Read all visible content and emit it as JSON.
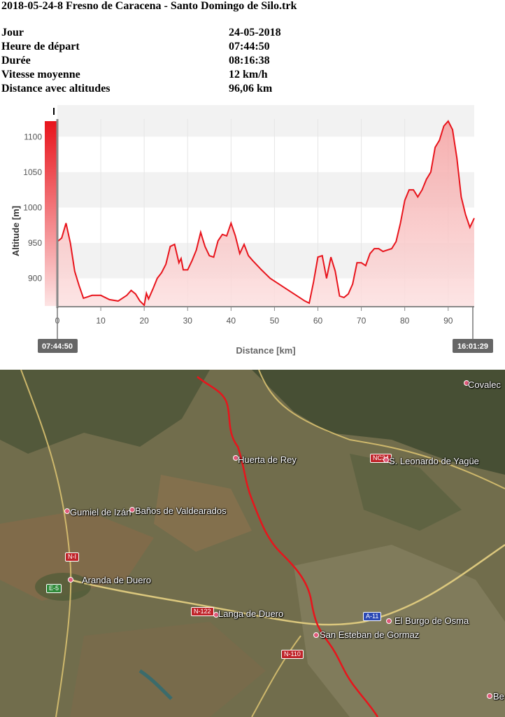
{
  "title": "2018-05-24-8 Fresno de Caracena - Santo Domingo de Silo.trk",
  "info": [
    {
      "label": "Jour",
      "value": "24-05-2018"
    },
    {
      "label": "Heure de départ",
      "value": "07:44:50"
    },
    {
      "label": "Durée",
      "value": "08:16:38"
    },
    {
      "label": "Vitesse moyenne",
      "value": "12 km/h"
    },
    {
      "label": "Distance avec altitudes",
      "value": "96,06 km"
    }
  ],
  "chart_data": {
    "type": "area",
    "xlabel": "Distance [km]",
    "ylabel": "Altitude [m]",
    "xlim": [
      0,
      96
    ],
    "ylim": [
      860,
      1125
    ],
    "xticks": [
      0,
      10,
      20,
      30,
      40,
      50,
      60,
      70,
      80,
      90
    ],
    "yticks": [
      900,
      950,
      1000,
      1050,
      1100
    ],
    "grid": "horizontal bands",
    "start_time": "07:44:50",
    "end_time": "16:01:29",
    "colors": {
      "line": "#e8141c",
      "fill": "#f7b3b3"
    },
    "x": [
      0,
      1,
      2,
      3,
      4,
      5,
      6,
      8,
      10,
      12,
      14,
      16,
      17,
      18,
      19,
      20,
      20.5,
      21,
      22,
      23,
      24,
      25,
      26,
      27,
      28,
      28.5,
      29,
      30,
      31,
      32,
      33,
      34,
      35,
      36,
      37,
      38,
      39,
      40,
      41,
      42,
      43,
      44,
      45,
      47,
      49,
      51,
      53,
      55,
      57,
      58,
      59,
      60,
      61,
      62,
      63,
      64,
      65,
      66,
      67,
      68,
      69,
      70,
      71,
      72,
      73,
      74,
      75,
      76,
      77,
      78,
      79,
      80,
      81,
      82,
      83,
      84,
      85,
      86,
      87,
      88,
      89,
      90,
      91,
      92,
      93,
      94,
      95,
      96
    ],
    "y": [
      952,
      957,
      978,
      950,
      910,
      890,
      872,
      876,
      876,
      870,
      868,
      876,
      883,
      878,
      868,
      862,
      879,
      871,
      885,
      900,
      908,
      920,
      945,
      948,
      922,
      928,
      912,
      912,
      925,
      940,
      965,
      945,
      932,
      930,
      953,
      962,
      960,
      978,
      960,
      935,
      948,
      932,
      925,
      912,
      900,
      892,
      884,
      876,
      868,
      865,
      895,
      930,
      932,
      900,
      930,
      910,
      875,
      873,
      878,
      892,
      922,
      922,
      918,
      935,
      942,
      942,
      938,
      940,
      942,
      952,
      978,
      1010,
      1025,
      1025,
      1015,
      1025,
      1040,
      1050,
      1085,
      1095,
      1115,
      1122,
      1110,
      1070,
      1015,
      990,
      972,
      985
    ]
  },
  "map": {
    "places": [
      {
        "name": "Huerta de Rey"
      },
      {
        "name": "S. Leonardo de Yagüe"
      },
      {
        "name": "Gumiel de Izán"
      },
      {
        "name": "Baños de Valdearados"
      },
      {
        "name": "Aranda de Duero"
      },
      {
        "name": "Langa de Duero"
      },
      {
        "name": "San Esteban de Gormaz"
      },
      {
        "name": "El Burgo de Osma"
      },
      {
        "name": "Covalec"
      },
      {
        "name": "Be"
      }
    ],
    "roads": [
      "NC34",
      "N-I",
      "E-5",
      "N-122",
      "A-11",
      "N-110"
    ],
    "colors": {
      "route": "#e8141c"
    }
  }
}
